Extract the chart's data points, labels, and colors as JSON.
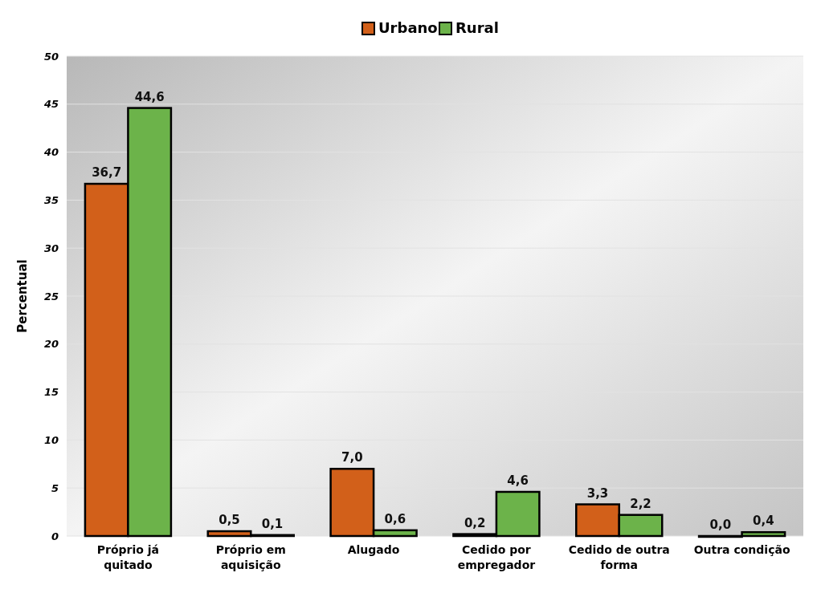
{
  "chart_data": {
    "type": "bar",
    "ylabel": "Percentual",
    "categories": [
      "Próprio já quitado",
      "Próprio em aquisição",
      "Alugado",
      "Cedido por empregador",
      "Cedido de outra forma",
      "Outra condição"
    ],
    "series": [
      {
        "name": "Urbano",
        "color": "#d2601a",
        "values": [
          36.7,
          0.5,
          7.0,
          0.2,
          3.3,
          0.0
        ],
        "value_labels": [
          "36,7",
          "0,5",
          "7,0",
          "0,2",
          "3,3",
          "0,0"
        ]
      },
      {
        "name": "Rural",
        "color": "#6cb34a",
        "values": [
          44.6,
          0.1,
          0.6,
          4.6,
          2.2,
          0.4
        ],
        "value_labels": [
          "44,6",
          "0,1",
          "0,6",
          "4,6",
          "2,2",
          "0,4"
        ]
      }
    ],
    "ylim": [
      0,
      50
    ],
    "yticks": [
      0,
      5,
      10,
      15,
      20,
      25,
      30,
      35,
      40,
      45,
      50
    ],
    "grid": "y",
    "legend": "top"
  }
}
